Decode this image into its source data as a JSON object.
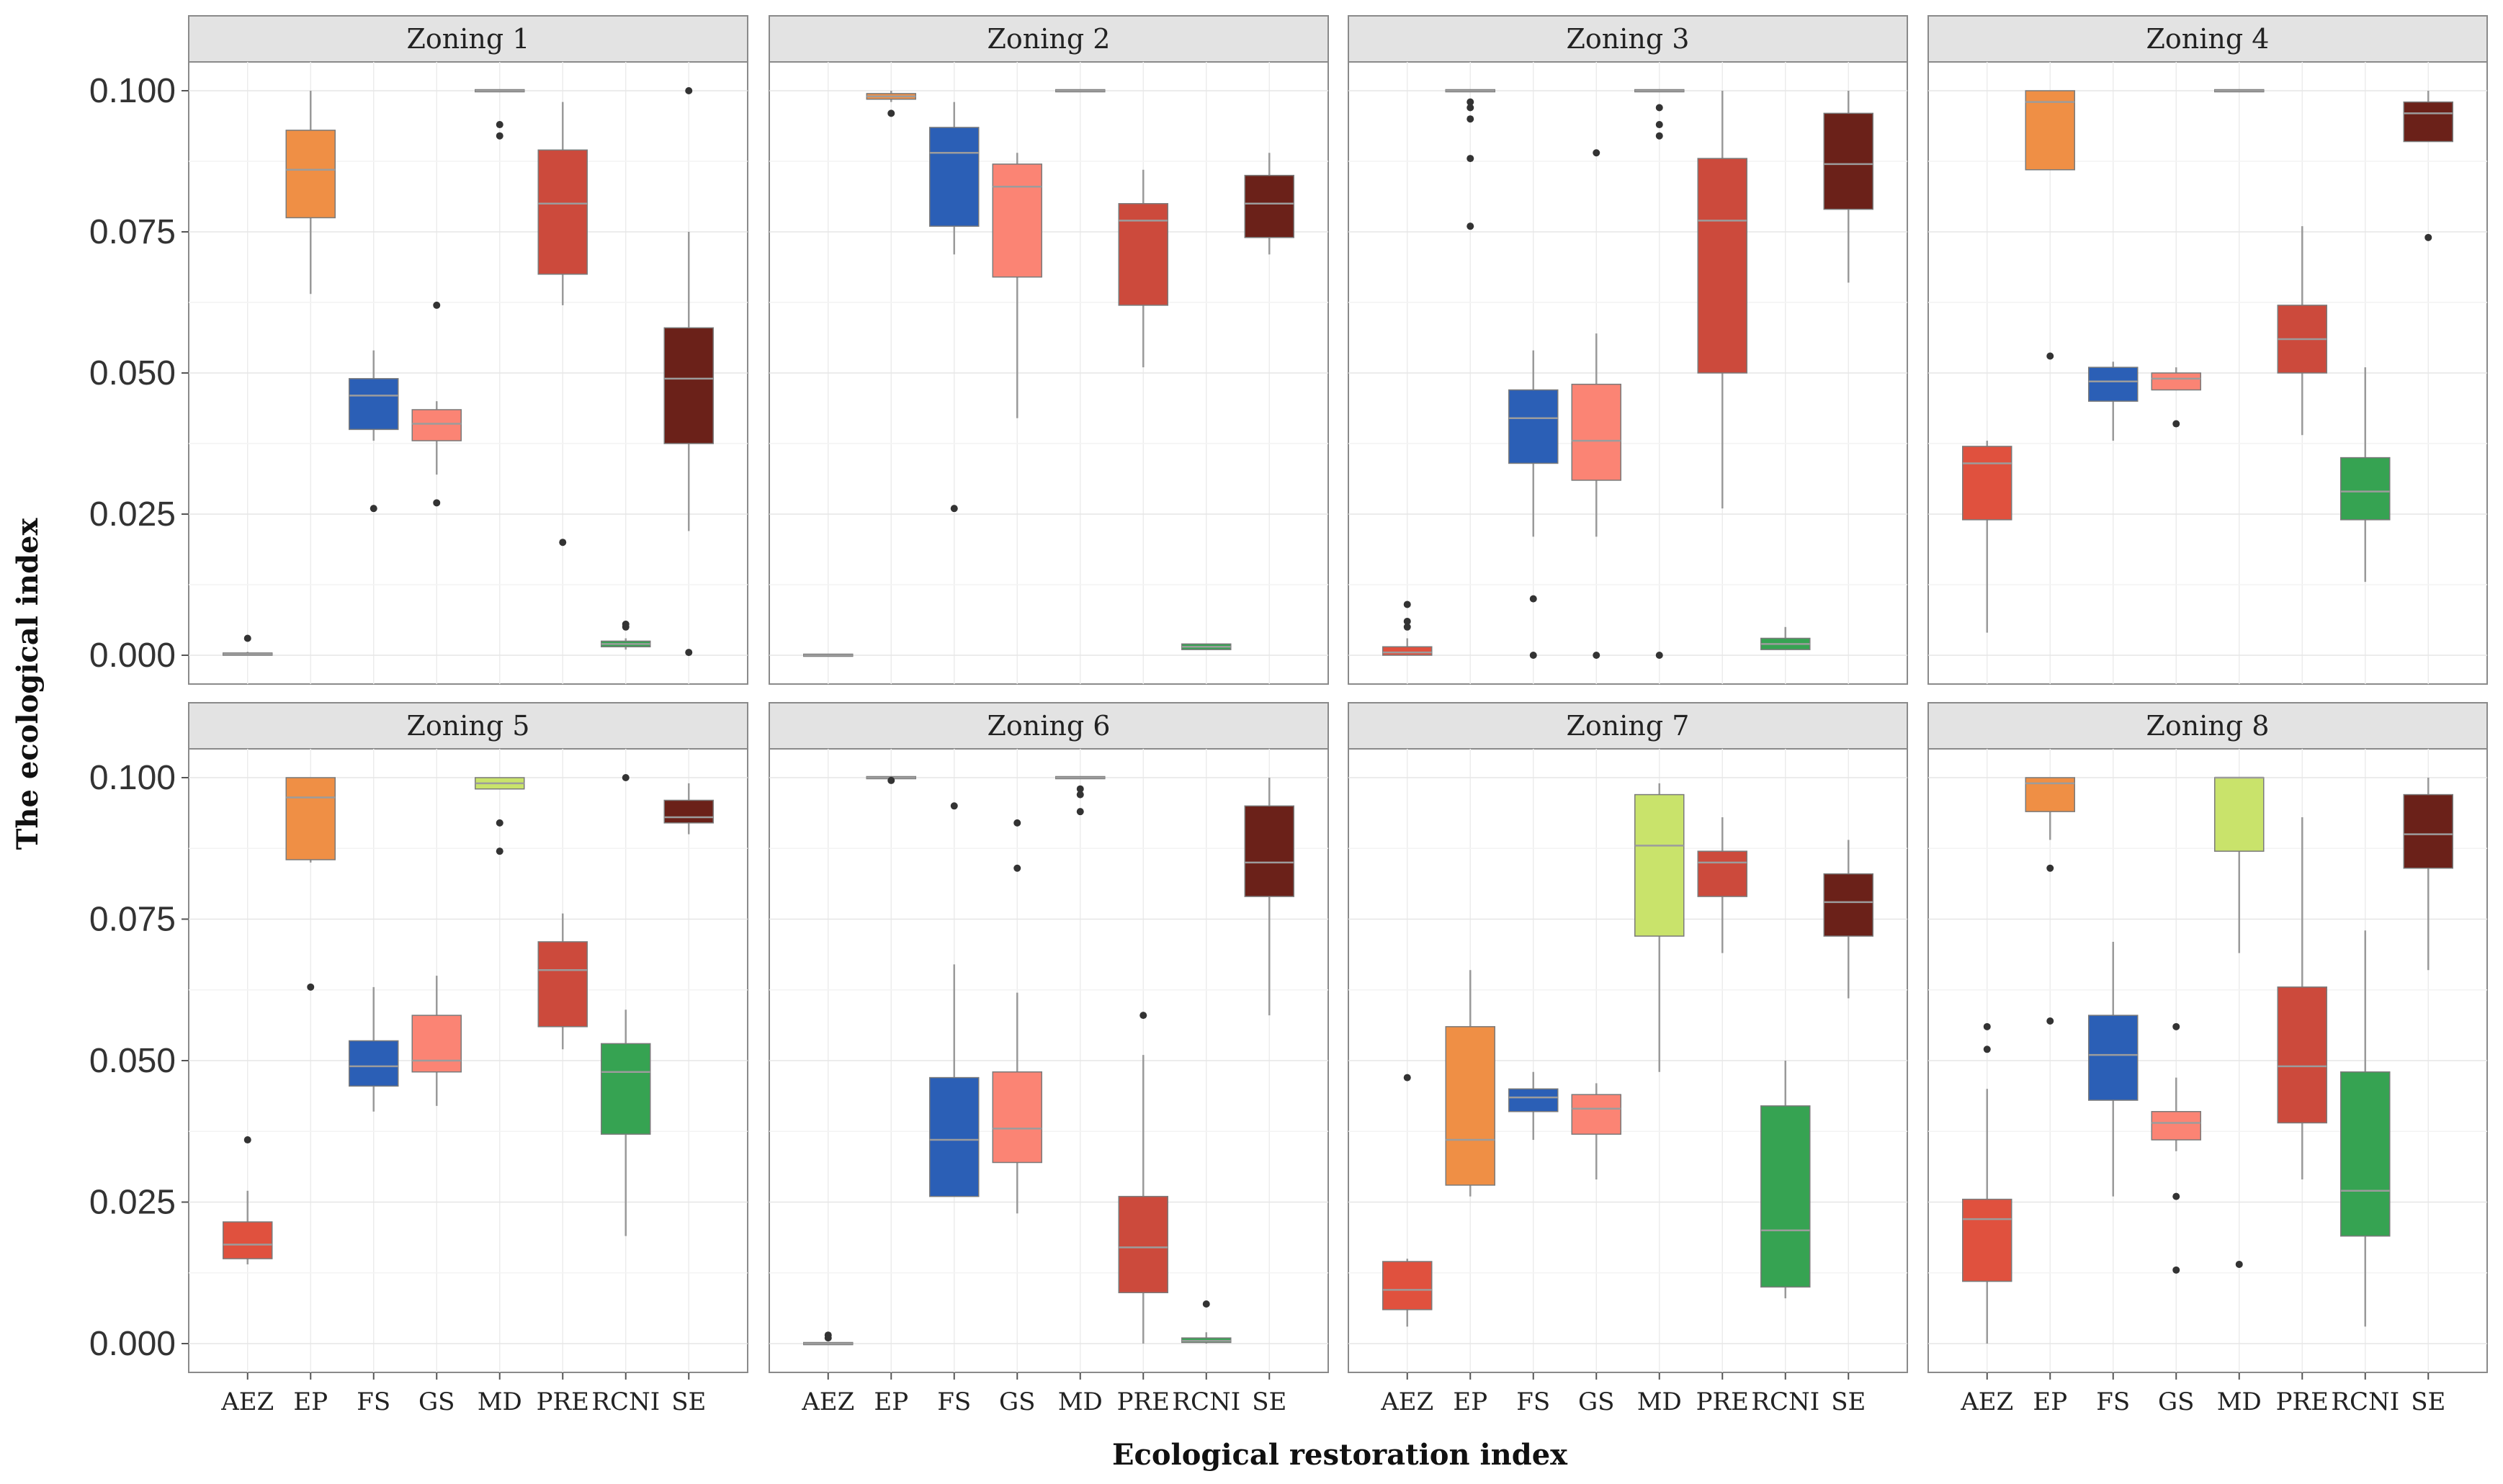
{
  "chart_data": {
    "type": "box",
    "xlabel": "Ecological restoration index",
    "ylabel": "The ecological index",
    "ylim": [
      0,
      0.1
    ],
    "yticks": [
      "0.000",
      "0.025",
      "0.050",
      "0.075",
      "0.100"
    ],
    "categories": [
      "AEZ",
      "EP",
      "FS",
      "GS",
      "MD",
      "PRE",
      "RCNI",
      "SE"
    ],
    "colors": {
      "AEZ": "#e0513e",
      "EP": "#ef8f45",
      "FS": "#2b5fb6",
      "GS": "#fb8474",
      "MD": "#c9e36b",
      "PRE": "#cc4a3c",
      "RCNI": "#36a352",
      "SE": "#6b2119"
    },
    "panels": [
      {
        "title": "Zoning 1",
        "boxes": [
          {
            "cat": "AEZ",
            "min": 0.0,
            "q1": 0.0,
            "median": 0.0002,
            "q3": 0.0004,
            "max": 0.0006,
            "outliers": [
              0.003
            ]
          },
          {
            "cat": "EP",
            "min": 0.064,
            "q1": 0.0775,
            "median": 0.086,
            "q3": 0.093,
            "max": 0.1,
            "outliers": []
          },
          {
            "cat": "FS",
            "min": 0.038,
            "q1": 0.04,
            "median": 0.046,
            "q3": 0.049,
            "max": 0.054,
            "outliers": [
              0.026
            ]
          },
          {
            "cat": "GS",
            "min": 0.032,
            "q1": 0.038,
            "median": 0.041,
            "q3": 0.0435,
            "max": 0.045,
            "outliers": [
              0.062,
              0.027
            ]
          },
          {
            "cat": "MD",
            "min": 0.1,
            "q1": 0.1,
            "median": 0.1,
            "q3": 0.1,
            "max": 0.1,
            "outliers": [
              0.094,
              0.092
            ]
          },
          {
            "cat": "PRE",
            "min": 0.062,
            "q1": 0.0675,
            "median": 0.08,
            "q3": 0.0895,
            "max": 0.098,
            "outliers": [
              0.02
            ]
          },
          {
            "cat": "RCNI",
            "min": 0.001,
            "q1": 0.0015,
            "median": 0.002,
            "q3": 0.0025,
            "max": 0.003,
            "outliers": [
              0.005,
              0.0055
            ]
          },
          {
            "cat": "SE",
            "min": 0.022,
            "q1": 0.0375,
            "median": 0.049,
            "q3": 0.058,
            "max": 0.075,
            "outliers": [
              0.1,
              0.0005
            ]
          }
        ]
      },
      {
        "title": "Zoning 2",
        "boxes": [
          {
            "cat": "AEZ",
            "min": 0.0,
            "q1": 0.0,
            "median": 0.0,
            "q3": 0.0,
            "max": 0.0,
            "outliers": []
          },
          {
            "cat": "EP",
            "min": 0.098,
            "q1": 0.0985,
            "median": 0.099,
            "q3": 0.0995,
            "max": 0.1,
            "outliers": [
              0.096
            ]
          },
          {
            "cat": "FS",
            "min": 0.071,
            "q1": 0.076,
            "median": 0.089,
            "q3": 0.0935,
            "max": 0.098,
            "outliers": [
              0.026
            ]
          },
          {
            "cat": "GS",
            "min": 0.042,
            "q1": 0.067,
            "median": 0.083,
            "q3": 0.087,
            "max": 0.089,
            "outliers": []
          },
          {
            "cat": "MD",
            "min": 0.1,
            "q1": 0.1,
            "median": 0.1,
            "q3": 0.1,
            "max": 0.1,
            "outliers": []
          },
          {
            "cat": "PRE",
            "min": 0.051,
            "q1": 0.062,
            "median": 0.077,
            "q3": 0.08,
            "max": 0.086,
            "outliers": []
          },
          {
            "cat": "RCNI",
            "min": 0.001,
            "q1": 0.001,
            "median": 0.0015,
            "q3": 0.002,
            "max": 0.002,
            "outliers": []
          },
          {
            "cat": "SE",
            "min": 0.071,
            "q1": 0.074,
            "median": 0.08,
            "q3": 0.085,
            "max": 0.089,
            "outliers": []
          }
        ]
      },
      {
        "title": "Zoning 3",
        "boxes": [
          {
            "cat": "AEZ",
            "min": 0.0,
            "q1": 0.0,
            "median": 0.0005,
            "q3": 0.0015,
            "max": 0.003,
            "outliers": [
              0.009,
              0.006,
              0.005
            ]
          },
          {
            "cat": "EP",
            "min": 0.1,
            "q1": 0.1,
            "median": 0.1,
            "q3": 0.1,
            "max": 0.1,
            "outliers": [
              0.098,
              0.097,
              0.095,
              0.088,
              0.076
            ]
          },
          {
            "cat": "FS",
            "min": 0.021,
            "q1": 0.034,
            "median": 0.042,
            "q3": 0.047,
            "max": 0.054,
            "outliers": [
              0.01,
              0.0
            ]
          },
          {
            "cat": "GS",
            "min": 0.021,
            "q1": 0.031,
            "median": 0.038,
            "q3": 0.048,
            "max": 0.057,
            "outliers": [
              0.089,
              0.0
            ]
          },
          {
            "cat": "MD",
            "min": 0.1,
            "q1": 0.1,
            "median": 0.1,
            "q3": 0.1,
            "max": 0.1,
            "outliers": [
              0.097,
              0.094,
              0.092,
              0.0
            ]
          },
          {
            "cat": "PRE",
            "min": 0.026,
            "q1": 0.05,
            "median": 0.077,
            "q3": 0.088,
            "max": 0.1,
            "outliers": []
          },
          {
            "cat": "RCNI",
            "min": 0.001,
            "q1": 0.001,
            "median": 0.002,
            "q3": 0.003,
            "max": 0.005,
            "outliers": []
          },
          {
            "cat": "SE",
            "min": 0.066,
            "q1": 0.079,
            "median": 0.087,
            "q3": 0.096,
            "max": 0.1,
            "outliers": []
          }
        ]
      },
      {
        "title": "Zoning 4",
        "boxes": [
          {
            "cat": "AEZ",
            "min": 0.004,
            "q1": 0.024,
            "median": 0.034,
            "q3": 0.037,
            "max": 0.038,
            "outliers": []
          },
          {
            "cat": "EP",
            "min": 0.086,
            "q1": 0.086,
            "median": 0.098,
            "q3": 0.1,
            "max": 0.1,
            "outliers": [
              0.053
            ]
          },
          {
            "cat": "FS",
            "min": 0.038,
            "q1": 0.045,
            "median": 0.0485,
            "q3": 0.051,
            "max": 0.052,
            "outliers": []
          },
          {
            "cat": "GS",
            "min": 0.047,
            "q1": 0.047,
            "median": 0.049,
            "q3": 0.05,
            "max": 0.051,
            "outliers": [
              0.041
            ]
          },
          {
            "cat": "MD",
            "min": 0.1,
            "q1": 0.1,
            "median": 0.1,
            "q3": 0.1,
            "max": 0.1,
            "outliers": []
          },
          {
            "cat": "PRE",
            "min": 0.039,
            "q1": 0.05,
            "median": 0.056,
            "q3": 0.062,
            "max": 0.076,
            "outliers": []
          },
          {
            "cat": "RCNI",
            "min": 0.013,
            "q1": 0.024,
            "median": 0.029,
            "q3": 0.035,
            "max": 0.051,
            "outliers": []
          },
          {
            "cat": "SE",
            "min": 0.091,
            "q1": 0.091,
            "median": 0.096,
            "q3": 0.098,
            "max": 0.1,
            "outliers": [
              0.074
            ]
          }
        ]
      },
      {
        "title": "Zoning 5",
        "boxes": [
          {
            "cat": "AEZ",
            "min": 0.014,
            "q1": 0.015,
            "median": 0.0175,
            "q3": 0.0215,
            "max": 0.027,
            "outliers": [
              0.036
            ]
          },
          {
            "cat": "EP",
            "min": 0.085,
            "q1": 0.0855,
            "median": 0.0965,
            "q3": 0.1,
            "max": 0.1,
            "outliers": [
              0.063
            ]
          },
          {
            "cat": "FS",
            "min": 0.041,
            "q1": 0.0455,
            "median": 0.049,
            "q3": 0.0535,
            "max": 0.063,
            "outliers": []
          },
          {
            "cat": "GS",
            "min": 0.042,
            "q1": 0.048,
            "median": 0.05,
            "q3": 0.058,
            "max": 0.065,
            "outliers": []
          },
          {
            "cat": "MD",
            "min": 0.098,
            "q1": 0.098,
            "median": 0.099,
            "q3": 0.1,
            "max": 0.1,
            "outliers": [
              0.092,
              0.087
            ]
          },
          {
            "cat": "PRE",
            "min": 0.052,
            "q1": 0.056,
            "median": 0.066,
            "q3": 0.071,
            "max": 0.076,
            "outliers": []
          },
          {
            "cat": "RCNI",
            "min": 0.019,
            "q1": 0.037,
            "median": 0.048,
            "q3": 0.053,
            "max": 0.059,
            "outliers": [
              0.1
            ]
          },
          {
            "cat": "SE",
            "min": 0.09,
            "q1": 0.092,
            "median": 0.093,
            "q3": 0.096,
            "max": 0.099,
            "outliers": []
          }
        ]
      },
      {
        "title": "Zoning 6",
        "boxes": [
          {
            "cat": "AEZ",
            "min": 0.0,
            "q1": 0.0,
            "median": 0.0,
            "q3": 0.0,
            "max": 0.0,
            "outliers": [
              0.001,
              0.0015
            ]
          },
          {
            "cat": "EP",
            "min": 0.1,
            "q1": 0.1,
            "median": 0.1,
            "q3": 0.1,
            "max": 0.1,
            "outliers": [
              0.0995
            ]
          },
          {
            "cat": "FS",
            "min": 0.026,
            "q1": 0.026,
            "median": 0.036,
            "q3": 0.047,
            "max": 0.067,
            "outliers": [
              0.095
            ]
          },
          {
            "cat": "GS",
            "min": 0.023,
            "q1": 0.032,
            "median": 0.038,
            "q3": 0.048,
            "max": 0.062,
            "outliers": [
              0.092,
              0.084
            ]
          },
          {
            "cat": "MD",
            "min": 0.1,
            "q1": 0.1,
            "median": 0.1,
            "q3": 0.1,
            "max": 0.1,
            "outliers": [
              0.098,
              0.097,
              0.094
            ]
          },
          {
            "cat": "PRE",
            "min": 0.0,
            "q1": 0.009,
            "median": 0.017,
            "q3": 0.026,
            "max": 0.051,
            "outliers": [
              0.058
            ]
          },
          {
            "cat": "RCNI",
            "min": 0.0,
            "q1": 0.0002,
            "median": 0.0005,
            "q3": 0.001,
            "max": 0.002,
            "outliers": [
              0.007
            ]
          },
          {
            "cat": "SE",
            "min": 0.058,
            "q1": 0.079,
            "median": 0.085,
            "q3": 0.095,
            "max": 0.1,
            "outliers": []
          }
        ]
      },
      {
        "title": "Zoning 7",
        "boxes": [
          {
            "cat": "AEZ",
            "min": 0.003,
            "q1": 0.006,
            "median": 0.0095,
            "q3": 0.0145,
            "max": 0.015,
            "outliers": [
              0.047
            ]
          },
          {
            "cat": "EP",
            "min": 0.026,
            "q1": 0.028,
            "median": 0.036,
            "q3": 0.056,
            "max": 0.066,
            "outliers": []
          },
          {
            "cat": "FS",
            "min": 0.036,
            "q1": 0.041,
            "median": 0.0435,
            "q3": 0.045,
            "max": 0.048,
            "outliers": []
          },
          {
            "cat": "GS",
            "min": 0.029,
            "q1": 0.037,
            "median": 0.0415,
            "q3": 0.044,
            "max": 0.046,
            "outliers": []
          },
          {
            "cat": "MD",
            "min": 0.048,
            "q1": 0.072,
            "median": 0.088,
            "q3": 0.097,
            "max": 0.099,
            "outliers": []
          },
          {
            "cat": "PRE",
            "min": 0.069,
            "q1": 0.079,
            "median": 0.085,
            "q3": 0.087,
            "max": 0.093,
            "outliers": []
          },
          {
            "cat": "RCNI",
            "min": 0.008,
            "q1": 0.01,
            "median": 0.02,
            "q3": 0.042,
            "max": 0.05,
            "outliers": []
          },
          {
            "cat": "SE",
            "min": 0.061,
            "q1": 0.072,
            "median": 0.078,
            "q3": 0.083,
            "max": 0.089,
            "outliers": []
          }
        ]
      },
      {
        "title": "Zoning 8",
        "boxes": [
          {
            "cat": "AEZ",
            "min": 0.0,
            "q1": 0.011,
            "median": 0.022,
            "q3": 0.0255,
            "max": 0.045,
            "outliers": [
              0.056,
              0.052
            ]
          },
          {
            "cat": "EP",
            "min": 0.089,
            "q1": 0.094,
            "median": 0.099,
            "q3": 0.1,
            "max": 0.1,
            "outliers": [
              0.084,
              0.057
            ]
          },
          {
            "cat": "FS",
            "min": 0.026,
            "q1": 0.043,
            "median": 0.051,
            "q3": 0.058,
            "max": 0.071,
            "outliers": []
          },
          {
            "cat": "GS",
            "min": 0.034,
            "q1": 0.036,
            "median": 0.039,
            "q3": 0.041,
            "max": 0.047,
            "outliers": [
              0.056,
              0.026,
              0.013
            ]
          },
          {
            "cat": "MD",
            "min": 0.069,
            "q1": 0.087,
            "median": 0.1,
            "q3": 0.1,
            "max": 0.1,
            "outliers": [
              0.014
            ]
          },
          {
            "cat": "PRE",
            "min": 0.029,
            "q1": 0.039,
            "median": 0.049,
            "q3": 0.063,
            "max": 0.093,
            "outliers": []
          },
          {
            "cat": "RCNI",
            "min": 0.003,
            "q1": 0.019,
            "median": 0.027,
            "q3": 0.048,
            "max": 0.073,
            "outliers": []
          },
          {
            "cat": "SE",
            "min": 0.066,
            "q1": 0.084,
            "median": 0.09,
            "q3": 0.097,
            "max": 0.1,
            "outliers": []
          }
        ]
      }
    ]
  }
}
